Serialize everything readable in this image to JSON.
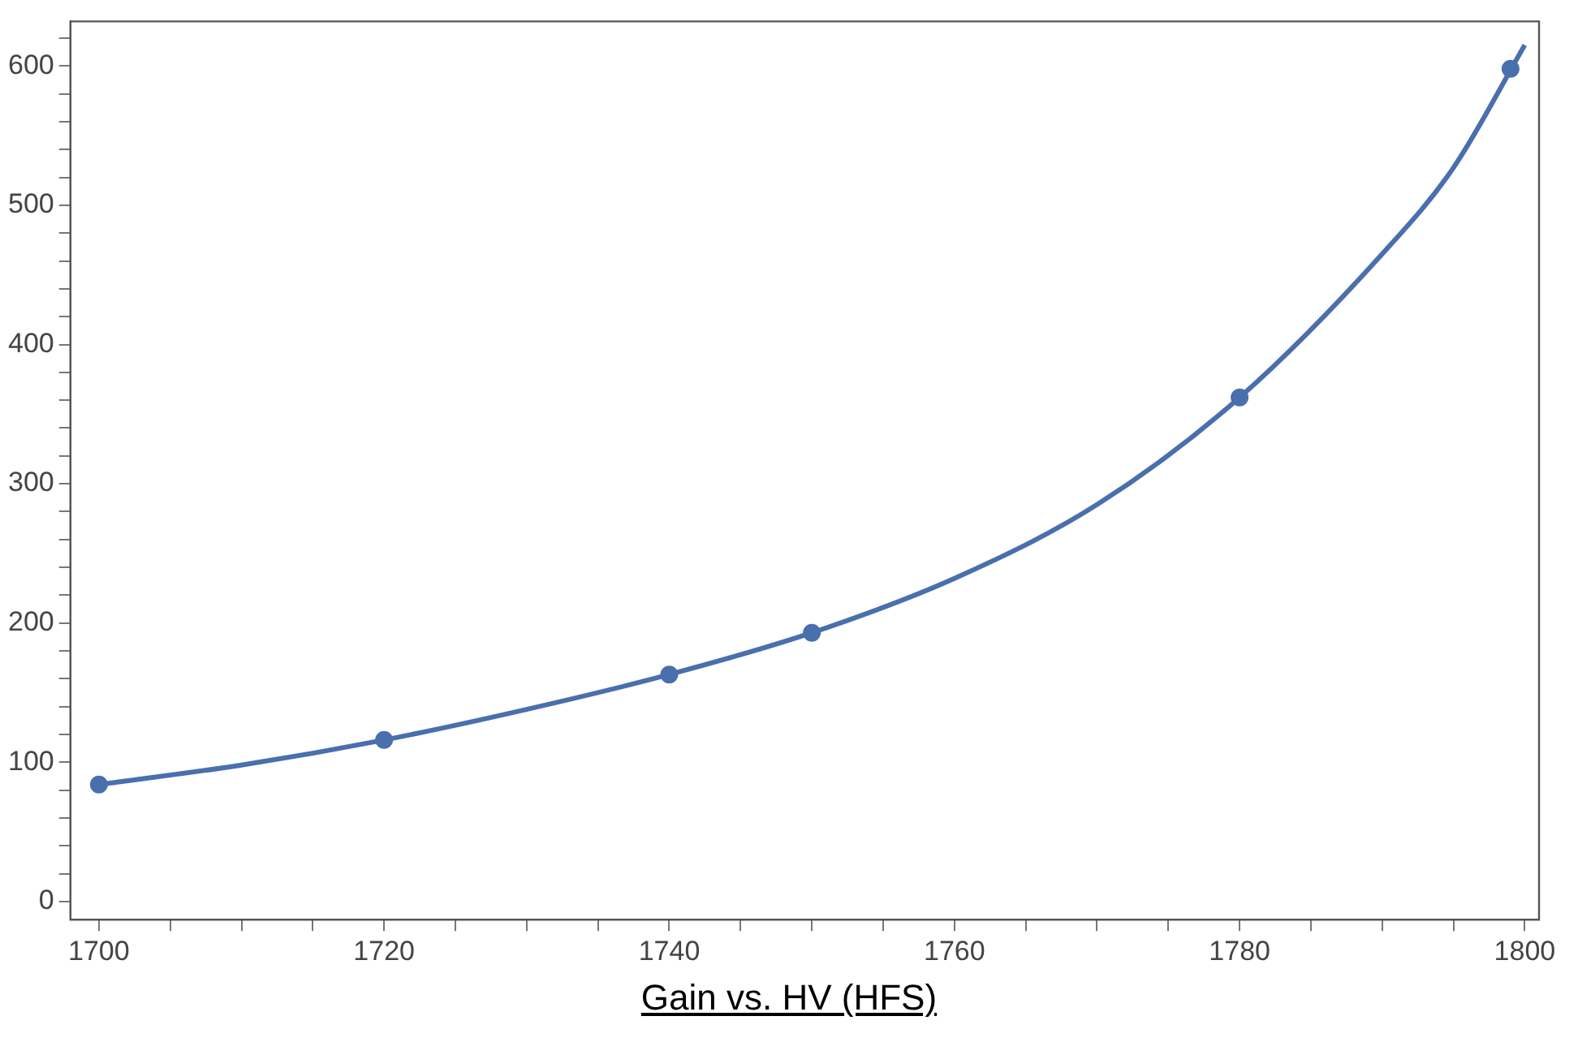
{
  "chart_data": {
    "type": "scatter",
    "title": "Gain vs. HV (HFS)",
    "xlim": [
      1698,
      1801
    ],
    "ylim": [
      -13,
      632
    ],
    "xticks": [
      1700,
      {
        "value": 1705,
        "label": null
      },
      {
        "value": 1710,
        "label": null
      },
      {
        "value": 1715,
        "label": null
      },
      1720,
      {
        "value": 1725,
        "label": null
      },
      {
        "value": 1730,
        "label": null
      },
      {
        "value": 1735,
        "label": null
      },
      1740,
      {
        "value": 1745,
        "label": null
      },
      {
        "value": 1750,
        "label": null
      },
      {
        "value": 1755,
        "label": null
      },
      1760,
      {
        "value": 1765,
        "label": null
      },
      {
        "value": 1770,
        "label": null
      },
      {
        "value": 1775,
        "label": null
      },
      1780,
      {
        "value": 1785,
        "label": null
      },
      {
        "value": 1790,
        "label": null
      },
      {
        "value": 1795,
        "label": null
      },
      1800
    ],
    "yticks": [
      0,
      {
        "value": 20,
        "label": null
      },
      {
        "value": 40,
        "label": null
      },
      {
        "value": 60,
        "label": null
      },
      {
        "value": 80,
        "label": null
      },
      100,
      {
        "value": 120,
        "label": null
      },
      {
        "value": 140,
        "label": null
      },
      {
        "value": 160,
        "label": null
      },
      {
        "value": 180,
        "label": null
      },
      200,
      {
        "value": 220,
        "label": null
      },
      {
        "value": 240,
        "label": null
      },
      {
        "value": 260,
        "label": null
      },
      {
        "value": 280,
        "label": null
      },
      300,
      {
        "value": 320,
        "label": null
      },
      {
        "value": 340,
        "label": null
      },
      {
        "value": 360,
        "label": null
      },
      {
        "value": 380,
        "label": null
      },
      400,
      {
        "value": 420,
        "label": null
      },
      {
        "value": 440,
        "label": null
      },
      {
        "value": 460,
        "label": null
      },
      {
        "value": 480,
        "label": null
      },
      500,
      {
        "value": 520,
        "label": null
      },
      {
        "value": 540,
        "label": null
      },
      {
        "value": 560,
        "label": null
      },
      {
        "value": 580,
        "label": null
      },
      600,
      {
        "value": 620,
        "label": null
      }
    ],
    "grid": false,
    "legend": false,
    "marker": "circle",
    "series": [
      {
        "type": "scatter",
        "color": "#4a6fad",
        "x": [
          1700,
          1720,
          1740,
          1750,
          1780,
          1799
        ],
        "values": [
          84,
          116,
          163,
          193,
          362,
          598
        ]
      },
      {
        "type": "line",
        "color": "#4a6fad",
        "marker": "none",
        "x": [
          1700,
          1710,
          1720,
          1730,
          1740,
          1750,
          1760,
          1770,
          1780,
          1790,
          1795,
          1800
        ],
        "values": [
          84,
          98,
          116,
          138,
          163,
          193,
          232,
          285,
          362,
          465,
          527,
          615
        ]
      }
    ]
  }
}
